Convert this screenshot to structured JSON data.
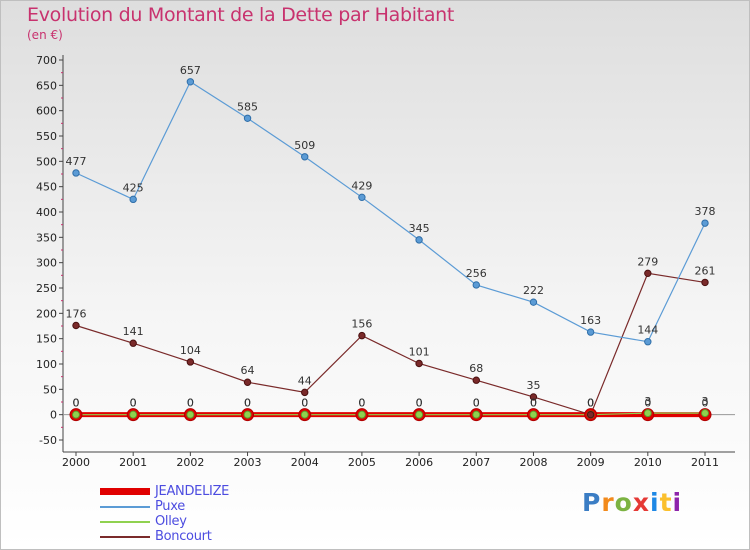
{
  "title": "Evolution du Montant de la Dette par Habitant",
  "unit_label": "(en €)",
  "logo": {
    "text": "Proxiti",
    "colors": [
      "#3b7dc4",
      "#f28a1c",
      "#7cb342",
      "#e53935",
      "#1e88e5",
      "#fbc02d",
      "#8e24aa"
    ]
  },
  "chart_data": {
    "type": "line",
    "title": "Evolution du Montant de la Dette par Habitant",
    "ylabel": "(en €)",
    "xlabel": "",
    "x": [
      "2000",
      "2001",
      "2002",
      "2003",
      "2004",
      "2005",
      "2006",
      "2007",
      "2008",
      "2009",
      "2010",
      "2011"
    ],
    "ylim": [
      -50,
      700
    ],
    "yticks": [
      "-50",
      "0",
      "50",
      "100",
      "150",
      "200",
      "250",
      "300",
      "350",
      "400",
      "450",
      "500",
      "550",
      "600",
      "650",
      "700"
    ],
    "grid": false,
    "legend_position": "bottom-left",
    "series": [
      {
        "name": "JEANDELIZE",
        "color": "#e00000",
        "values": [
          0,
          0,
          0,
          0,
          0,
          0,
          0,
          0,
          0,
          0,
          0,
          0
        ],
        "labels": [
          "0",
          "0",
          "0",
          "0",
          "0",
          "0",
          "0",
          "0",
          "0",
          "0",
          "0",
          "0"
        ]
      },
      {
        "name": "Puxe",
        "color": "#5b9bd5",
        "values": [
          477,
          425,
          657,
          585,
          509,
          429,
          345,
          256,
          222,
          163,
          144,
          378
        ],
        "labels": [
          "477",
          "425",
          "657",
          "585",
          "509",
          "429",
          "345",
          "256",
          "222",
          "163",
          "144",
          "378"
        ]
      },
      {
        "name": "Olley",
        "color": "#8fd14f",
        "values": [
          0,
          0,
          0,
          0,
          0,
          0,
          0,
          0,
          0,
          0,
          3,
          3
        ],
        "labels": [
          "0",
          "0",
          "0",
          "0",
          "0",
          "0",
          "0",
          "0",
          "0",
          "0",
          "3",
          "3"
        ]
      },
      {
        "name": "Boncourt",
        "color": "#7a2a2a",
        "values": [
          176,
          141,
          104,
          64,
          44,
          156,
          101,
          68,
          35,
          0,
          279,
          261
        ],
        "labels": [
          "176",
          "141",
          "104",
          "64",
          "44",
          "156",
          "101",
          "68",
          "35",
          "0",
          "279",
          "261"
        ]
      }
    ]
  }
}
